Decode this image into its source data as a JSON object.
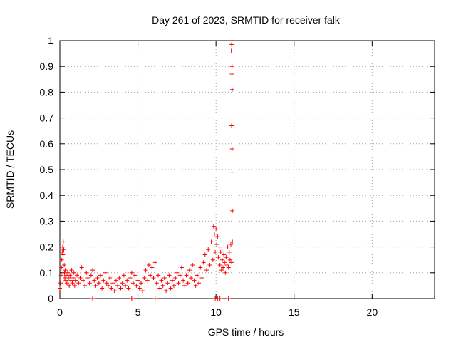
{
  "chart_data": {
    "type": "scatter",
    "title": "Day 261 of 2023, SRMTID for receiver falk",
    "xlabel": "GPS time / hours",
    "ylabel": "SRMTID / TECUs",
    "xlim": [
      0,
      24
    ],
    "ylim": [
      0,
      1
    ],
    "xticks": [
      0,
      5,
      10,
      15,
      20
    ],
    "yticks": [
      0,
      0.1,
      0.2,
      0.3,
      0.4,
      0.5,
      0.6,
      0.7,
      0.8,
      0.9,
      1
    ],
    "grid": true,
    "marker": "+",
    "color": "#ff0000",
    "series": [
      {
        "name": "SRMTID",
        "points": [
          [
            0.0,
            0.04
          ],
          [
            0.05,
            0.06
          ],
          [
            0.08,
            0.09
          ],
          [
            0.1,
            0.12
          ],
          [
            0.12,
            0.15
          ],
          [
            0.15,
            0.18
          ],
          [
            0.18,
            0.2
          ],
          [
            0.2,
            0.17
          ],
          [
            0.22,
            0.22
          ],
          [
            0.25,
            0.19
          ],
          [
            0.28,
            0.13
          ],
          [
            0.3,
            0.1
          ],
          [
            0.32,
            0.08
          ],
          [
            0.35,
            0.11
          ],
          [
            0.38,
            0.07
          ],
          [
            0.4,
            0.09
          ],
          [
            0.45,
            0.06
          ],
          [
            0.5,
            0.1
          ],
          [
            0.55,
            0.08
          ],
          [
            0.6,
            0.05
          ],
          [
            0.65,
            0.09
          ],
          [
            0.7,
            0.07
          ],
          [
            0.75,
            0.11
          ],
          [
            0.8,
            0.06
          ],
          [
            0.85,
            0.08
          ],
          [
            0.9,
            0.1
          ],
          [
            0.95,
            0.05
          ],
          [
            1.0,
            0.07
          ],
          [
            1.1,
            0.09
          ],
          [
            1.2,
            0.06
          ],
          [
            1.3,
            0.08
          ],
          [
            1.4,
            0.12
          ],
          [
            1.5,
            0.07
          ],
          [
            1.6,
            0.05
          ],
          [
            1.7,
            0.1
          ],
          [
            1.8,
            0.08
          ],
          [
            1.9,
            0.06
          ],
          [
            2.0,
            0.09
          ],
          [
            2.1,
            0.11
          ],
          [
            2.2,
            0.07
          ],
          [
            2.3,
            0.05
          ],
          [
            2.4,
            0.08
          ],
          [
            2.5,
            0.06
          ],
          [
            2.6,
            0.09
          ],
          [
            2.7,
            0.04
          ],
          [
            2.8,
            0.07
          ],
          [
            2.9,
            0.1
          ],
          [
            3.0,
            0.06
          ],
          [
            3.1,
            0.05
          ],
          [
            3.2,
            0.08
          ],
          [
            3.3,
            0.04
          ],
          [
            3.4,
            0.06
          ],
          [
            3.5,
            0.03
          ],
          [
            3.6,
            0.07
          ],
          [
            3.7,
            0.05
          ],
          [
            3.8,
            0.08
          ],
          [
            3.9,
            0.04
          ],
          [
            4.0,
            0.06
          ],
          [
            4.1,
            0.09
          ],
          [
            4.2,
            0.05
          ],
          [
            4.3,
            0.07
          ],
          [
            4.4,
            0.04
          ],
          [
            4.5,
            0.08
          ],
          [
            4.6,
            0.1
          ],
          [
            4.7,
            0.06
          ],
          [
            4.8,
            0.09
          ],
          [
            4.9,
            0.05
          ],
          [
            5.0,
            0.07
          ],
          [
            5.1,
            0.04
          ],
          [
            5.2,
            0.06
          ],
          [
            5.3,
            0.03
          ],
          [
            5.4,
            0.08
          ],
          [
            5.5,
            0.11
          ],
          [
            5.6,
            0.07
          ],
          [
            5.7,
            0.13
          ],
          [
            5.8,
            0.09
          ],
          [
            5.9,
            0.12
          ],
          [
            6.0,
            0.08
          ],
          [
            6.1,
            0.14
          ],
          [
            6.2,
            0.06
          ],
          [
            6.3,
            0.09
          ],
          [
            6.4,
            0.04
          ],
          [
            6.5,
            0.07
          ],
          [
            6.6,
            0.05
          ],
          [
            6.7,
            0.08
          ],
          [
            6.8,
            0.03
          ],
          [
            6.9,
            0.06
          ],
          [
            7.0,
            0.09
          ],
          [
            7.1,
            0.04
          ],
          [
            7.2,
            0.07
          ],
          [
            7.3,
            0.05
          ],
          [
            7.4,
            0.08
          ],
          [
            7.5,
            0.1
          ],
          [
            7.6,
            0.06
          ],
          [
            7.7,
            0.09
          ],
          [
            7.8,
            0.12
          ],
          [
            7.9,
            0.07
          ],
          [
            8.0,
            0.05
          ],
          [
            8.1,
            0.09
          ],
          [
            8.2,
            0.06
          ],
          [
            8.3,
            0.11
          ],
          [
            8.4,
            0.08
          ],
          [
            8.5,
            0.13
          ],
          [
            8.6,
            0.07
          ],
          [
            8.7,
            0.05
          ],
          [
            8.8,
            0.09
          ],
          [
            8.9,
            0.06
          ],
          [
            9.0,
            0.12
          ],
          [
            9.1,
            0.08
          ],
          [
            9.2,
            0.14
          ],
          [
            9.3,
            0.17
          ],
          [
            9.4,
            0.11
          ],
          [
            9.5,
            0.19
          ],
          [
            9.6,
            0.13
          ],
          [
            9.7,
            0.22
          ],
          [
            9.8,
            0.15
          ],
          [
            9.85,
            0.28
          ],
          [
            9.9,
            0.25
          ],
          [
            9.95,
            0.18
          ],
          [
            10.0,
            0.27
          ],
          [
            10.05,
            0.21
          ],
          [
            10.1,
            0.24
          ],
          [
            10.15,
            0.16
          ],
          [
            10.2,
            0.2
          ],
          [
            10.25,
            0.13
          ],
          [
            10.3,
            0.18
          ],
          [
            10.35,
            0.11
          ],
          [
            10.4,
            0.15
          ],
          [
            10.45,
            0.12
          ],
          [
            10.5,
            0.17
          ],
          [
            10.55,
            0.14
          ],
          [
            10.6,
            0.1
          ],
          [
            10.65,
            0.16
          ],
          [
            10.7,
            0.13
          ],
          [
            10.75,
            0.2
          ],
          [
            10.8,
            0.12
          ],
          [
            10.85,
            0.18
          ],
          [
            10.9,
            0.15
          ],
          [
            10.95,
            0.21
          ],
          [
            11.0,
            0.14
          ],
          [
            11.05,
            0.22
          ],
          [
            11.05,
            0.34
          ],
          [
            11.02,
            0.49
          ],
          [
            11.03,
            0.58
          ],
          [
            11.0,
            0.67
          ],
          [
            11.04,
            0.81
          ],
          [
            11.02,
            0.87
          ],
          [
            11.03,
            0.9
          ],
          [
            10.98,
            0.96
          ],
          [
            11.0,
            0.985
          ],
          [
            9.95,
            0.0
          ],
          [
            10.1,
            0.0
          ],
          [
            10.25,
            0.0
          ],
          [
            10.8,
            0.0
          ],
          [
            2.1,
            0.0
          ],
          [
            4.6,
            0.0
          ],
          [
            6.1,
            0.0
          ]
        ]
      }
    ]
  }
}
